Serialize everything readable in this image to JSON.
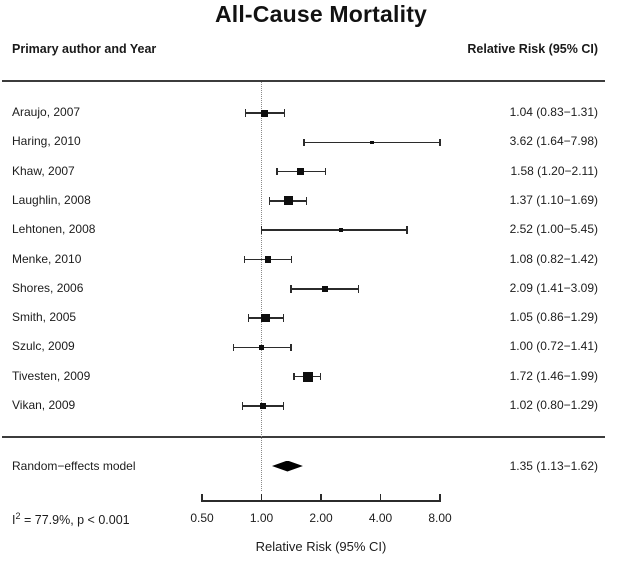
{
  "header": {
    "left": "Primary author and Year",
    "right": "Relative Risk (95% CI)"
  },
  "colors": {
    "text": "#1c1c1c",
    "line": "#2b2b2b",
    "marker": "#0e0e0e",
    "reference_line": "#8a8a8a"
  },
  "chart_data": {
    "type": "forest",
    "title": "All-Cause Mortality",
    "x_scale": "log2",
    "x_ticks": [
      0.5,
      1.0,
      2.0,
      4.0,
      8.0
    ],
    "x_tick_labels": [
      "0.50",
      "1.00",
      "2.00",
      "4.00",
      "8.00"
    ],
    "x_axis_label": "Relative Risk (95% CI)",
    "reference_line": 1.0,
    "studies": [
      {
        "label": "Araujo, 2007",
        "rr": 1.04,
        "ci_low": 0.83,
        "ci_high": 1.31,
        "display": "1.04 (0.83−1.31)",
        "box_size": 7
      },
      {
        "label": "Haring, 2010",
        "rr": 3.62,
        "ci_low": 1.64,
        "ci_high": 7.98,
        "display": "3.62 (1.64−7.98)",
        "box_size": 3.5
      },
      {
        "label": "Khaw, 2007",
        "rr": 1.58,
        "ci_low": 1.2,
        "ci_high": 2.11,
        "display": "1.58 (1.20−2.11)",
        "box_size": 7
      },
      {
        "label": "Laughlin, 2008",
        "rr": 1.37,
        "ci_low": 1.1,
        "ci_high": 1.69,
        "display": "1.37 (1.10−1.69)",
        "box_size": 9
      },
      {
        "label": "Lehtonen, 2008",
        "rr": 2.52,
        "ci_low": 1.0,
        "ci_high": 5.45,
        "display": "2.52 (1.00−5.45)",
        "box_size": 3.5
      },
      {
        "label": "Menke, 2010",
        "rr": 1.08,
        "ci_low": 0.82,
        "ci_high": 1.42,
        "display": "1.08 (0.82−1.42)",
        "box_size": 6.5
      },
      {
        "label": "Shores, 2006",
        "rr": 2.09,
        "ci_low": 1.41,
        "ci_high": 3.09,
        "display": "2.09 (1.41−3.09)",
        "box_size": 6.5
      },
      {
        "label": "Smith, 2005",
        "rr": 1.05,
        "ci_low": 0.86,
        "ci_high": 1.29,
        "display": "1.05 (0.86−1.29)",
        "box_size": 8.5
      },
      {
        "label": "Szulc, 2009",
        "rr": 1.0,
        "ci_low": 0.72,
        "ci_high": 1.41,
        "display": "1.00 (0.72−1.41)",
        "box_size": 5
      },
      {
        "label": "Tivesten, 2009",
        "rr": 1.72,
        "ci_low": 1.46,
        "ci_high": 1.99,
        "display": "1.72 (1.46−1.99)",
        "box_size": 10
      },
      {
        "label": "Vikan, 2009",
        "rr": 1.02,
        "ci_low": 0.8,
        "ci_high": 1.29,
        "display": "1.02 (0.80−1.29)",
        "box_size": 6
      }
    ],
    "summary": {
      "label": "Random−effects model",
      "rr": 1.35,
      "ci_low": 1.13,
      "ci_high": 1.62,
      "display": "1.35 (1.13−1.62)"
    },
    "heterogeneity": {
      "base": "I",
      "sup": "2",
      "rest": " = 77.9%, p < 0.001"
    }
  }
}
